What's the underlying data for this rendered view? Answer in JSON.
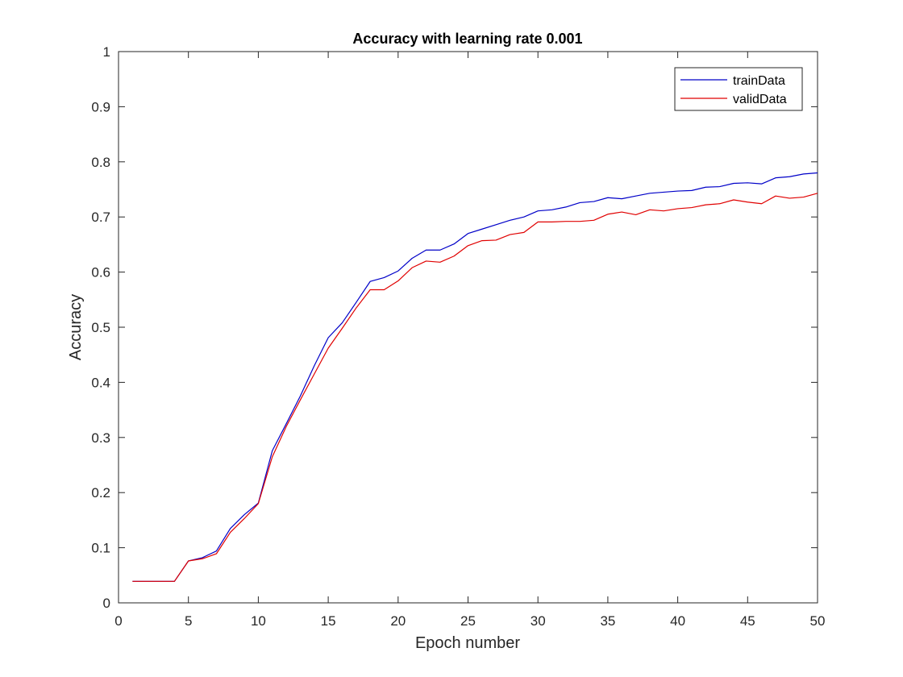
{
  "chart_data": {
    "type": "line",
    "title": "Accuracy with learning rate 0.001",
    "xlabel": "Epoch number",
    "ylabel": "Accuracy",
    "xlim": [
      0,
      50
    ],
    "ylim": [
      0,
      1
    ],
    "xticks": [
      0,
      5,
      10,
      15,
      20,
      25,
      30,
      35,
      40,
      45,
      50
    ],
    "yticks": [
      0,
      0.1,
      0.2,
      0.3,
      0.4,
      0.5,
      0.6,
      0.7,
      0.8,
      0.9,
      1
    ],
    "xtick_labels": [
      "0",
      "5",
      "10",
      "15",
      "20",
      "25",
      "30",
      "35",
      "40",
      "45",
      "50"
    ],
    "ytick_labels": [
      "0",
      "0.1",
      "0.2",
      "0.3",
      "0.4",
      "0.5",
      "0.6",
      "0.7",
      "0.8",
      "0.9",
      "1"
    ],
    "grid": false,
    "legend_position": "top-right",
    "x": [
      1,
      2,
      3,
      4,
      5,
      6,
      7,
      8,
      9,
      10,
      11,
      12,
      13,
      14,
      15,
      16,
      17,
      18,
      19,
      20,
      21,
      22,
      23,
      24,
      25,
      26,
      27,
      28,
      29,
      30,
      31,
      32,
      33,
      34,
      35,
      36,
      37,
      38,
      39,
      40,
      41,
      42,
      43,
      44,
      45,
      46,
      47,
      48,
      49,
      50
    ],
    "series": [
      {
        "name": "trainData",
        "color": "#0000c8",
        "values": [
          0.039,
          0.039,
          0.039,
          0.039,
          0.076,
          0.082,
          0.094,
          0.135,
          0.16,
          0.181,
          0.276,
          0.325,
          0.375,
          0.43,
          0.481,
          0.508,
          0.545,
          0.583,
          0.59,
          0.602,
          0.625,
          0.64,
          0.64,
          0.651,
          0.67,
          0.678,
          0.686,
          0.694,
          0.7,
          0.711,
          0.713,
          0.718,
          0.726,
          0.728,
          0.735,
          0.733,
          0.738,
          0.743,
          0.745,
          0.747,
          0.748,
          0.754,
          0.755,
          0.761,
          0.762,
          0.76,
          0.771,
          0.773,
          0.778,
          0.78
        ]
      },
      {
        "name": "validData",
        "color": "#e00000",
        "values": [
          0.039,
          0.039,
          0.039,
          0.039,
          0.076,
          0.08,
          0.089,
          0.128,
          0.153,
          0.18,
          0.265,
          0.32,
          0.368,
          0.415,
          0.462,
          0.498,
          0.535,
          0.568,
          0.568,
          0.584,
          0.608,
          0.62,
          0.618,
          0.629,
          0.648,
          0.657,
          0.658,
          0.668,
          0.672,
          0.691,
          0.691,
          0.692,
          0.692,
          0.694,
          0.705,
          0.709,
          0.704,
          0.713,
          0.711,
          0.715,
          0.717,
          0.722,
          0.724,
          0.731,
          0.727,
          0.724,
          0.738,
          0.734,
          0.736,
          0.743
        ]
      }
    ]
  }
}
